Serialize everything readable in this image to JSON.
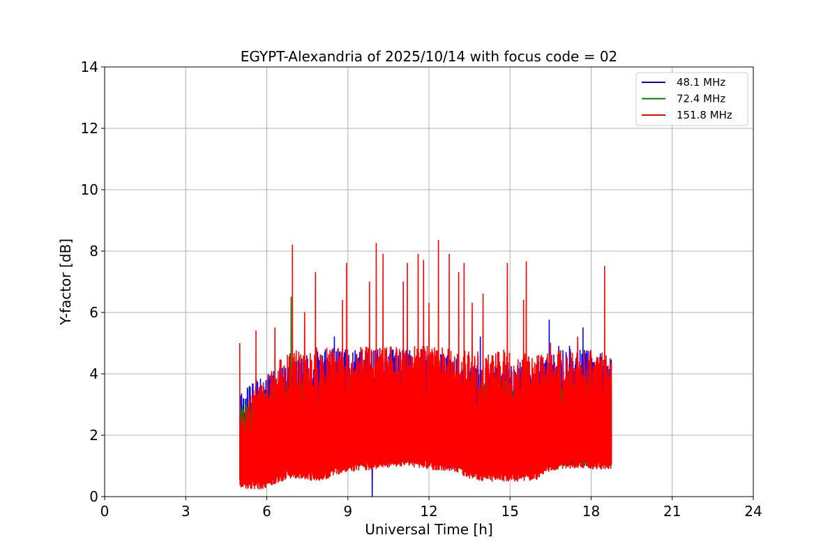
{
  "chart_data": {
    "type": "line",
    "title": "EGYPT-Alexandria of 2025/10/14 with focus code = 02",
    "xlabel": "Universal Time [h]",
    "ylabel": "Y-factor [dB]",
    "xlim": [
      0,
      24
    ],
    "ylim": [
      0,
      14
    ],
    "xticks": [
      0,
      3,
      6,
      9,
      12,
      15,
      18,
      21,
      24
    ],
    "yticks": [
      0,
      2,
      4,
      6,
      8,
      10,
      12,
      14
    ],
    "xtick_labels": [
      "0",
      "3",
      "6",
      "9",
      "12",
      "15",
      "18",
      "21",
      "24"
    ],
    "ytick_labels": [
      "0",
      "2",
      "4",
      "6",
      "8",
      "10",
      "12",
      "14"
    ],
    "grid": true,
    "legend_position": "top-right",
    "data_start_h": 5.0,
    "data_end_h": 18.75,
    "series": [
      {
        "name": "48.1 MHz",
        "legend_label": " 48.1 MHz",
        "color": "#0000ff",
        "baseline": [
          [
            5.0,
            0.5
          ],
          [
            6.0,
            0.7
          ],
          [
            7.0,
            0.9
          ],
          [
            8.0,
            1.0
          ],
          [
            9.0,
            1.0
          ],
          [
            10.0,
            1.0
          ],
          [
            11.0,
            1.1
          ],
          [
            12.0,
            1.1
          ],
          [
            13.0,
            0.9
          ],
          [
            14.0,
            0.8
          ],
          [
            15.0,
            0.8
          ],
          [
            16.0,
            0.9
          ],
          [
            16.5,
            1.0
          ],
          [
            17.0,
            1.0
          ],
          [
            18.0,
            1.0
          ],
          [
            18.75,
            1.0
          ]
        ],
        "upper": [
          [
            5.0,
            3.5
          ],
          [
            6.0,
            4.0
          ],
          [
            7.0,
            4.5
          ],
          [
            8.0,
            4.8
          ],
          [
            9.0,
            4.8
          ],
          [
            10.0,
            4.8
          ],
          [
            11.0,
            4.8
          ],
          [
            12.0,
            4.8
          ],
          [
            13.0,
            4.5
          ],
          [
            14.0,
            4.2
          ],
          [
            15.0,
            4.3
          ],
          [
            16.0,
            4.5
          ],
          [
            17.0,
            4.8
          ],
          [
            18.0,
            4.8
          ],
          [
            18.75,
            4.5
          ]
        ],
        "peaks": [
          [
            8.5,
            5.2
          ],
          [
            9.9,
            0.0
          ],
          [
            13.9,
            5.2
          ],
          [
            16.45,
            5.75
          ],
          [
            17.7,
            5.5
          ],
          [
            16.8,
            4.9
          ],
          [
            17.2,
            4.9
          ]
        ]
      },
      {
        "name": "72.4 MHz",
        "legend_label": " 72.4 MHz",
        "color": "#008000",
        "baseline": [
          [
            5.0,
            0.5
          ],
          [
            6.0,
            0.7
          ],
          [
            7.0,
            0.9
          ],
          [
            8.0,
            1.0
          ],
          [
            9.0,
            1.0
          ],
          [
            10.0,
            1.0
          ],
          [
            11.0,
            1.1
          ],
          [
            12.0,
            1.1
          ],
          [
            13.0,
            0.9
          ],
          [
            14.0,
            0.8
          ],
          [
            15.0,
            0.8
          ],
          [
            16.0,
            0.9
          ],
          [
            16.5,
            1.0
          ],
          [
            17.0,
            1.0
          ],
          [
            18.0,
            1.0
          ],
          [
            18.75,
            1.0
          ]
        ],
        "upper": [
          [
            5.0,
            3.0
          ],
          [
            6.0,
            3.5
          ],
          [
            7.0,
            3.8
          ],
          [
            8.0,
            3.8
          ],
          [
            9.0,
            3.8
          ],
          [
            10.0,
            3.9
          ],
          [
            11.0,
            3.9
          ],
          [
            12.0,
            3.9
          ],
          [
            13.0,
            3.8
          ],
          [
            14.0,
            3.8
          ],
          [
            15.0,
            3.8
          ],
          [
            16.0,
            3.8
          ],
          [
            17.0,
            3.9
          ],
          [
            18.0,
            3.9
          ],
          [
            18.75,
            3.8
          ]
        ],
        "peaks": [
          [
            6.9,
            6.5
          ],
          [
            7.5,
            3.9
          ],
          [
            16.85,
            3.9
          ],
          [
            18.5,
            3.6
          ]
        ]
      },
      {
        "name": "151.8 MHz",
        "legend_label": "151.8 MHz",
        "color": "#ff0000",
        "baseline": [
          [
            5.0,
            0.3
          ],
          [
            5.5,
            0.2
          ],
          [
            6.0,
            0.3
          ],
          [
            6.5,
            0.5
          ],
          [
            7.0,
            0.6
          ],
          [
            8.0,
            0.5
          ],
          [
            8.5,
            0.7
          ],
          [
            9.0,
            0.8
          ],
          [
            10.0,
            0.9
          ],
          [
            11.0,
            1.0
          ],
          [
            12.0,
            0.9
          ],
          [
            13.0,
            0.8
          ],
          [
            13.5,
            0.6
          ],
          [
            14.0,
            0.5
          ],
          [
            15.0,
            0.5
          ],
          [
            16.0,
            0.5
          ],
          [
            16.3,
            0.8
          ],
          [
            17.0,
            0.9
          ],
          [
            18.0,
            0.9
          ],
          [
            18.75,
            0.9
          ]
        ],
        "upper": [
          [
            5.0,
            2.5
          ],
          [
            5.5,
            3.5
          ],
          [
            6.0,
            4.0
          ],
          [
            6.5,
            4.5
          ],
          [
            7.0,
            4.8
          ],
          [
            8.0,
            4.9
          ],
          [
            9.0,
            4.9
          ],
          [
            10.0,
            4.9
          ],
          [
            11.0,
            4.9
          ],
          [
            12.0,
            4.9
          ],
          [
            13.0,
            4.8
          ],
          [
            14.0,
            4.7
          ],
          [
            15.0,
            4.8
          ],
          [
            16.0,
            4.6
          ],
          [
            17.0,
            4.8
          ],
          [
            18.0,
            4.8
          ],
          [
            18.75,
            4.6
          ]
        ],
        "peaks": [
          [
            5.0,
            5.0
          ],
          [
            5.6,
            5.4
          ],
          [
            6.3,
            5.5
          ],
          [
            6.95,
            8.2
          ],
          [
            7.4,
            6.0
          ],
          [
            7.8,
            7.3
          ],
          [
            8.8,
            6.4
          ],
          [
            8.95,
            7.6
          ],
          [
            9.8,
            7.0
          ],
          [
            10.05,
            8.25
          ],
          [
            10.3,
            7.9
          ],
          [
            11.05,
            7.0
          ],
          [
            11.2,
            7.6
          ],
          [
            11.6,
            7.9
          ],
          [
            11.8,
            7.7
          ],
          [
            12.0,
            6.3
          ],
          [
            12.35,
            8.35
          ],
          [
            12.75,
            7.9
          ],
          [
            13.1,
            7.3
          ],
          [
            13.3,
            7.6
          ],
          [
            13.6,
            6.3
          ],
          [
            14.0,
            6.6
          ],
          [
            14.9,
            7.6
          ],
          [
            15.5,
            6.4
          ],
          [
            15.6,
            7.65
          ],
          [
            16.5,
            5.0
          ],
          [
            17.5,
            5.2
          ],
          [
            18.5,
            7.5
          ]
        ]
      }
    ]
  }
}
